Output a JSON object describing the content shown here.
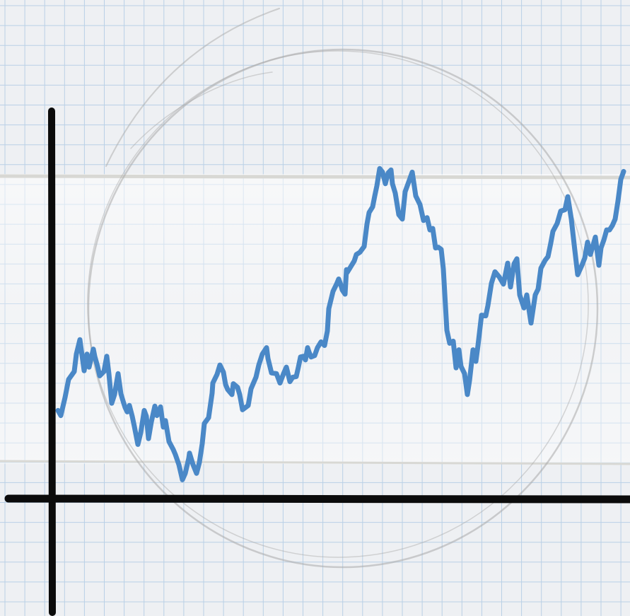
{
  "chart_data": {
    "type": "line",
    "title": "",
    "xlabel": "",
    "ylabel": "",
    "grid": true,
    "legend": "none",
    "xlim": [
      0,
      800
    ],
    "ylim": [
      0,
      470
    ],
    "series": [
      {
        "color": "#4a88c7",
        "x": [
          0,
          4,
          10,
          15,
          23,
          26,
          31,
          37,
          41,
          44,
          50,
          52,
          56,
          59,
          65,
          69,
          72,
          76,
          80,
          85,
          89,
          93,
          95,
          98,
          101,
          105,
          108,
          113,
          117,
          122,
          125,
          128,
          132,
          137,
          140,
          145,
          149,
          152,
          157,
          163,
          166,
          171,
          176,
          180,
          185,
          186,
          191,
          196,
          200,
          204,
          207,
          213,
          218,
          219,
          225,
          229,
          234,
          237,
          240,
          246,
          248,
          254,
          257,
          261,
          269,
          273,
          280,
          284,
          289,
          295,
          297,
          302,
          309,
          314,
          319,
          323,
          328,
          332,
          337,
          340,
          343,
          347,
          350,
          353,
          355,
          358,
          363,
          367,
          372,
          377,
          381,
          383,
          389,
          394,
          397,
          400,
          402,
          406,
          408,
          409,
          414,
          419,
          422,
          427,
          433,
          437,
          440,
          445,
          448,
          451,
          455,
          459,
          463,
          467,
          471,
          473,
          477,
          482,
          487,
          491,
          497,
          501,
          506,
          512,
          517,
          522,
          526,
          530,
          534,
          538,
          542,
          545,
          550,
          554,
          559,
          563,
          567,
          570,
          575,
          579,
          582,
          587,
          591,
          594,
          599,
          605,
          608,
          613,
          618,
          624,
          630,
          636,
          640,
          645,
          649,
          653,
          659,
          663,
          669,
          675,
          679,
          683,
          689,
          693,
          697,
          700,
          706,
          711,
          717,
          721,
          726,
          730,
          735,
          741,
          745,
          749,
          753,
          760,
          765,
          768,
          772,
          776,
          780,
          784,
          788,
          792,
          796,
          800
        ],
        "y": [
          122,
          115,
          140,
          165,
          176,
          200,
          220,
          177,
          200,
          182,
          207,
          197,
          183,
          170,
          176,
          197,
          173,
          132,
          144,
          173,
          145,
          132,
          126,
          120,
          129,
          114,
          100,
          75,
          91,
          122,
          114,
          83,
          106,
          128,
          115,
          127,
          99,
          108,
          79,
          68,
          61,
          47,
          26,
          35,
          56,
          63,
          47,
          35,
          50,
          76,
          104,
          112,
          146,
          160,
          172,
          185,
          175,
          158,
          151,
          144,
          159,
          154,
          144,
          123,
          129,
          152,
          168,
          185,
          200,
          209,
          194,
          174,
          173,
          160,
          173,
          182,
          162,
          168,
          169,
          182,
          196,
          197,
          192,
          209,
          203,
          196,
          198,
          209,
          217,
          212,
          232,
          263,
          287,
          297,
          304,
          296,
          289,
          283,
          317,
          313,
          321,
          329,
          338,
          341,
          349,
          380,
          396,
          404,
          419,
          433,
          457,
          452,
          436,
          451,
          455,
          436,
          423,
          393,
          387,
          425,
          441,
          452,
          419,
          407,
          385,
          389,
          372,
          374,
          347,
          348,
          345,
          318,
          233,
          215,
          218,
          181,
          206,
          183,
          173,
          144,
          163,
          206,
          190,
          212,
          254,
          253,
          267,
          298,
          314,
          307,
          297,
          326,
          293,
          325,
          332,
          282,
          264,
          282,
          243,
          282,
          290,
          319,
          330,
          335,
          354,
          370,
          381,
          398,
          400,
          418,
          387,
          352,
          310,
          323,
          333,
          355,
          338,
          362,
          323,
          347,
          358,
          372,
          372,
          378,
          387,
          412,
          442,
          453
        ]
      }
    ]
  }
}
